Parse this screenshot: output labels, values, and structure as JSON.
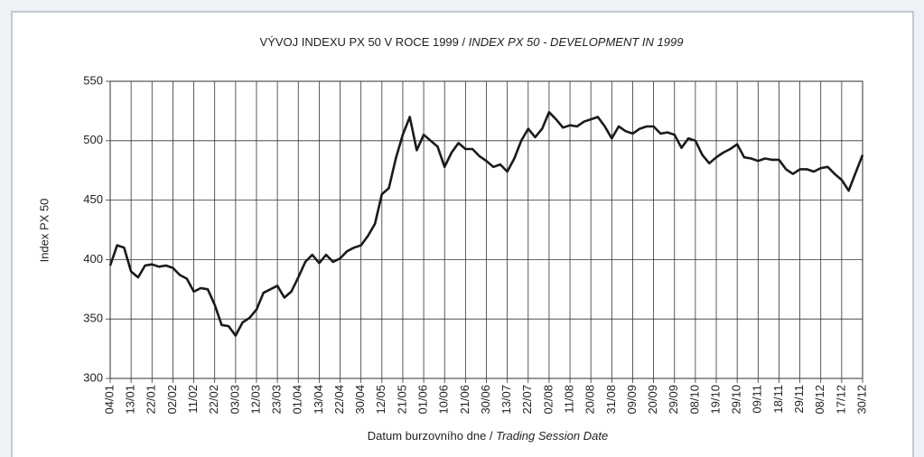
{
  "chart_data": {
    "type": "line",
    "title": "VÝVOJ INDEXU PX 50 V ROCE 1999 /",
    "title_en": "INDEX PX 50  - DEVELOPMENT IN 1999",
    "ylabel": "Index PX 50",
    "xlabel": "Datum burzovního dne /",
    "xlabel_en": "Trading Session Date",
    "color": "#1a1a1a",
    "grid": true,
    "ylim": [
      300,
      550
    ],
    "yticks": [
      300,
      350,
      400,
      450,
      500,
      550
    ],
    "categories": [
      "04/01",
      null,
      null,
      "13/01",
      null,
      null,
      "22/01",
      null,
      null,
      "02/02",
      null,
      null,
      "11/02",
      null,
      null,
      "22/02",
      null,
      null,
      "03/03",
      null,
      null,
      "12/03",
      null,
      null,
      "23/03",
      null,
      null,
      "01/04",
      null,
      null,
      "13/04",
      null,
      null,
      "22/04",
      null,
      null,
      "30/04",
      null,
      null,
      "12/05",
      null,
      null,
      "21/05",
      null,
      null,
      "01/06",
      null,
      null,
      "10/06",
      null,
      null,
      "21/06",
      null,
      null,
      "30/06",
      null,
      null,
      "13/07",
      null,
      null,
      "22/07",
      null,
      null,
      "02/08",
      null,
      null,
      "11/08",
      null,
      null,
      "20/08",
      null,
      null,
      "31/08",
      null,
      null,
      "09/09",
      null,
      null,
      "20/09",
      null,
      null,
      "29/09",
      null,
      null,
      "08/10",
      null,
      null,
      "19/10",
      null,
      null,
      "29/10",
      null,
      null,
      "09/11",
      null,
      null,
      "18/11",
      null,
      null,
      "29/11",
      null,
      null,
      "08/12",
      null,
      null,
      "17/12",
      null,
      null,
      "30/12"
    ],
    "values": [
      395,
      412,
      410,
      390,
      385,
      395,
      396,
      394,
      395,
      393,
      387,
      384,
      373,
      376,
      375,
      362,
      345,
      344,
      336,
      347,
      351,
      358,
      372,
      375,
      378,
      368,
      373,
      385,
      398,
      404,
      397,
      404,
      398,
      401,
      407,
      410,
      412,
      420,
      430,
      455,
      460,
      485,
      505,
      520,
      492,
      505,
      500,
      495,
      478,
      490,
      498,
      493,
      493,
      487,
      483,
      478,
      480,
      474,
      485,
      500,
      510,
      503,
      510,
      524,
      518,
      511,
      513,
      512,
      516,
      518,
      520,
      512,
      502,
      512,
      508,
      506,
      510,
      512,
      512,
      506,
      507,
      505,
      494,
      502,
      500,
      488,
      481,
      486,
      490,
      493,
      497,
      486,
      485,
      483,
      485,
      484,
      484,
      476,
      472,
      476,
      476,
      474,
      477,
      478,
      472,
      467,
      458,
      473,
      488
    ]
  }
}
